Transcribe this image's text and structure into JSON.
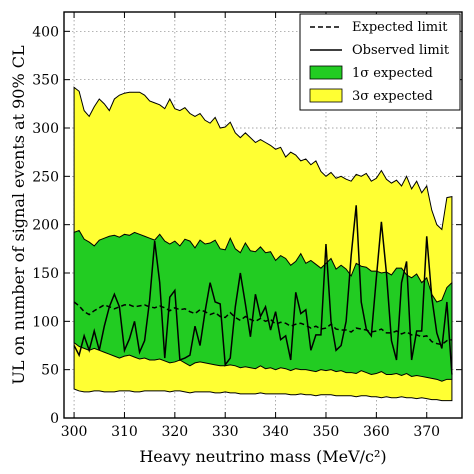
{
  "chart_data": {
    "type": "area",
    "xlabel": "Heavy neutrino mass (MeV/c²)",
    "ylabel": "UL on number of signal events at 90% CL",
    "xlim": [
      298,
      377
    ],
    "ylim": [
      0,
      420
    ],
    "xticks": [
      300,
      310,
      320,
      330,
      340,
      350,
      360,
      370
    ],
    "yticks": [
      0,
      50,
      100,
      150,
      200,
      250,
      300,
      350,
      400
    ],
    "grid": true,
    "legend_position": "top-right",
    "colors": {
      "band_3sigma": "#ffff33",
      "band_1sigma": "#22cc22",
      "lines": "#000000",
      "grid": "#888888"
    },
    "x": [
      300,
      301,
      302,
      303,
      304,
      305,
      306,
      307,
      308,
      309,
      310,
      311,
      312,
      313,
      314,
      315,
      316,
      317,
      318,
      319,
      320,
      321,
      322,
      323,
      324,
      325,
      326,
      327,
      328,
      329,
      330,
      331,
      332,
      333,
      334,
      335,
      336,
      337,
      338,
      339,
      340,
      341,
      342,
      343,
      344,
      345,
      346,
      347,
      348,
      349,
      350,
      351,
      352,
      353,
      354,
      355,
      356,
      357,
      358,
      359,
      360,
      361,
      362,
      363,
      364,
      365,
      366,
      367,
      368,
      369,
      370,
      371,
      372,
      373,
      374,
      375
    ],
    "series": [
      {
        "name": "3σ expected",
        "lower": [
          30,
          28,
          27,
          27,
          28,
          28,
          27,
          27,
          27,
          28,
          28,
          28,
          27,
          27,
          28,
          28,
          28,
          28,
          28,
          27,
          28,
          28,
          27,
          26,
          27,
          27,
          27,
          27,
          26,
          26,
          27,
          26,
          26,
          25,
          25,
          25,
          25,
          26,
          25,
          25,
          25,
          25,
          25,
          24,
          24,
          25,
          24,
          24,
          23,
          24,
          24,
          24,
          23,
          23,
          23,
          23,
          22,
          23,
          23,
          22,
          22,
          21,
          22,
          21,
          21,
          22,
          21,
          21,
          20,
          21,
          20,
          19,
          19,
          18,
          18,
          18
        ],
        "upper": [
          342,
          338,
          318,
          312,
          322,
          330,
          325,
          318,
          330,
          334,
          336,
          337,
          337,
          337,
          334,
          328,
          326,
          324,
          320,
          330,
          320,
          318,
          321,
          315,
          312,
          315,
          308,
          305,
          311,
          300,
          301,
          306,
          295,
          290,
          295,
          290,
          285,
          288,
          285,
          282,
          278,
          280,
          270,
          275,
          272,
          266,
          268,
          262,
          266,
          255,
          250,
          254,
          248,
          250,
          247,
          245,
          252,
          250,
          253,
          245,
          248,
          256,
          247,
          243,
          246,
          240,
          250,
          237,
          245,
          233,
          240,
          215,
          200,
          195,
          228,
          229
        ]
      },
      {
        "name": "1σ expected",
        "lower": [
          78,
          74,
          72,
          70,
          72,
          70,
          68,
          66,
          64,
          62,
          64,
          65,
          63,
          61,
          62,
          60,
          60,
          61,
          59,
          57,
          58,
          60,
          57,
          54,
          57,
          58,
          57,
          56,
          55,
          54,
          54,
          55,
          54,
          52,
          53,
          52,
          51,
          54,
          51,
          52,
          50,
          52,
          51,
          49,
          51,
          50,
          50,
          49,
          48,
          50,
          49,
          50,
          48,
          49,
          47,
          47,
          46,
          49,
          47,
          45,
          46,
          48,
          45,
          45,
          46,
          44,
          46,
          43,
          44,
          43,
          42,
          41,
          40,
          38,
          40,
          40
        ],
        "upper": [
          192,
          194,
          185,
          182,
          178,
          184,
          186,
          188,
          189,
          187,
          190,
          189,
          192,
          190,
          188,
          186,
          184,
          190,
          183,
          180,
          183,
          178,
          185,
          183,
          176,
          184,
          180,
          181,
          184,
          175,
          174,
          186,
          175,
          171,
          181,
          173,
          172,
          177,
          171,
          172,
          163,
          168,
          165,
          158,
          162,
          170,
          160,
          163,
          159,
          155,
          160,
          165,
          154,
          158,
          154,
          147,
          160,
          157,
          156,
          152,
          152,
          150,
          151,
          148,
          155,
          155,
          148,
          145,
          149,
          140,
          145,
          128,
          120,
          122,
          135,
          140
        ]
      },
      {
        "name": "Expected limit",
        "values": [
          120,
          116,
          110,
          107,
          111,
          114,
          117,
          115,
          113,
          115,
          117,
          117,
          115,
          116,
          117,
          115,
          114,
          116,
          114,
          111,
          114,
          112,
          113,
          110,
          108,
          112,
          110,
          107,
          109,
          105,
          104,
          109,
          104,
          101,
          105,
          102,
          100,
          103,
          100,
          102,
          97,
          99,
          98,
          95,
          97,
          98,
          96,
          93,
          95,
          92,
          93,
          97,
          92,
          91,
          91,
          89,
          93,
          92,
          91,
          89,
          90,
          92,
          88,
          88,
          90,
          87,
          89,
          86,
          86,
          84,
          85,
          79,
          77,
          76,
          80,
          81
        ]
      },
      {
        "name": "Observed limit",
        "values": [
          75,
          65,
          85,
          70,
          90,
          70,
          95,
          115,
          128,
          115,
          70,
          82,
          100,
          68,
          80,
          122,
          183,
          140,
          62,
          125,
          132,
          60,
          62,
          65,
          95,
          75,
          110,
          140,
          120,
          118,
          55,
          62,
          115,
          150,
          118,
          84,
          128,
          105,
          115,
          91,
          110,
          81,
          85,
          60,
          130,
          108,
          112,
          70,
          86,
          86,
          180,
          100,
          70,
          75,
          100,
          168,
          220,
          120,
          92,
          85,
          145,
          203,
          150,
          80,
          60,
          140,
          162,
          60,
          90,
          90,
          188,
          125,
          88,
          72,
          120,
          45
        ]
      }
    ]
  },
  "legend": {
    "expected_limit": "Expected limit",
    "observed_limit": "Observed limit",
    "band_1sigma": "1σ expected",
    "band_3sigma": "3σ expected"
  }
}
